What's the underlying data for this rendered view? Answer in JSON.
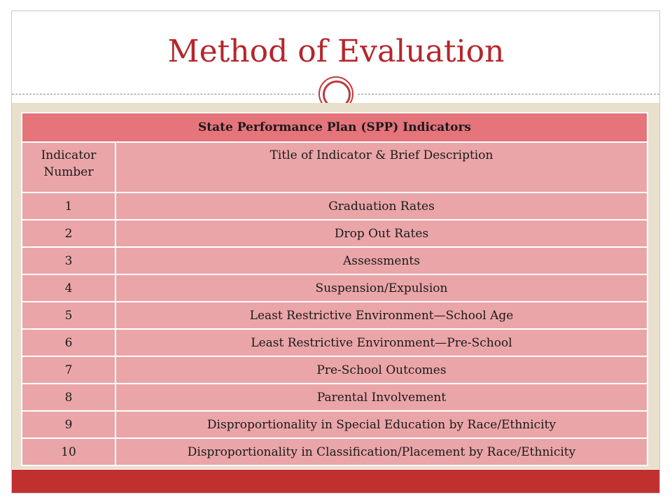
{
  "slide": {
    "title": "Method of Evaluation"
  },
  "table": {
    "header": "State Performance Plan (SPP) Indicators",
    "columns": [
      "Indicator Number",
      "Title of Indicator & Brief Description"
    ],
    "rows": [
      {
        "number": "1",
        "title": "Graduation Rates"
      },
      {
        "number": "2",
        "title": "Drop Out Rates"
      },
      {
        "number": "3",
        "title": "Assessments"
      },
      {
        "number": "4",
        "title": "Suspension/Expulsion"
      },
      {
        "number": "5",
        "title": "Least Restrictive Environment—School Age"
      },
      {
        "number": "6",
        "title": "Least Restrictive Environment—Pre-School"
      },
      {
        "number": "7",
        "title": "Pre-School Outcomes"
      },
      {
        "number": "8",
        "title": "Parental Involvement"
      },
      {
        "number": "9",
        "title": "Disproportionality in Special Education by Race/Ethnicity"
      },
      {
        "number": "10",
        "title": "Disproportionality in Classification/Placement by Race/Ethnicity"
      }
    ]
  },
  "colors": {
    "title": "#b5262b",
    "header_fill": "#e5747b",
    "cell_fill": "#eaa5a8",
    "background": "#e8dfcd",
    "footer_bar": "#c0302f"
  },
  "icons": {
    "divider_ornament": "double-circle-icon"
  }
}
